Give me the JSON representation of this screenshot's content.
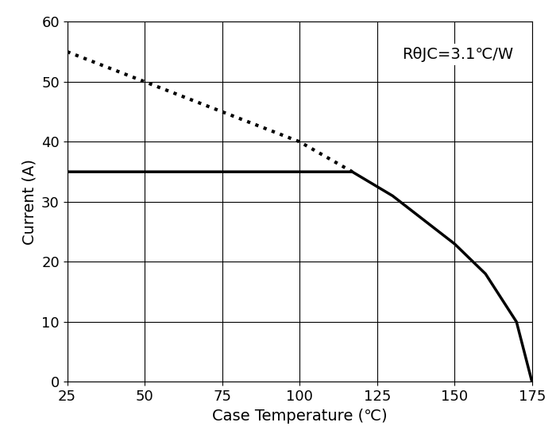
{
  "chart_data": {
    "type": "line",
    "x_label": "Case Temperature (℃)",
    "y_label": "Current (A)",
    "annotation": "RθJC=3.1℃/W",
    "series": [
      {
        "x": [
          25,
          50,
          75,
          100,
          117
        ],
        "values": [
          55,
          50,
          45,
          40,
          35
        ],
        "color": "#000000",
        "line_style": "dotted"
      },
      {
        "x": [
          25,
          117,
          130,
          140,
          150,
          160,
          170,
          175
        ],
        "values": [
          35,
          35,
          31,
          27,
          23,
          18,
          10,
          0
        ],
        "color": "#000000",
        "line_style": "solid"
      }
    ],
    "xlim": [
      25,
      175
    ],
    "xticks": [
      25,
      50,
      75,
      100,
      125,
      150,
      175
    ],
    "ylim": [
      0,
      60
    ],
    "yticks": [
      0,
      10,
      20,
      30,
      40,
      50,
      60
    ],
    "grid": true
  }
}
